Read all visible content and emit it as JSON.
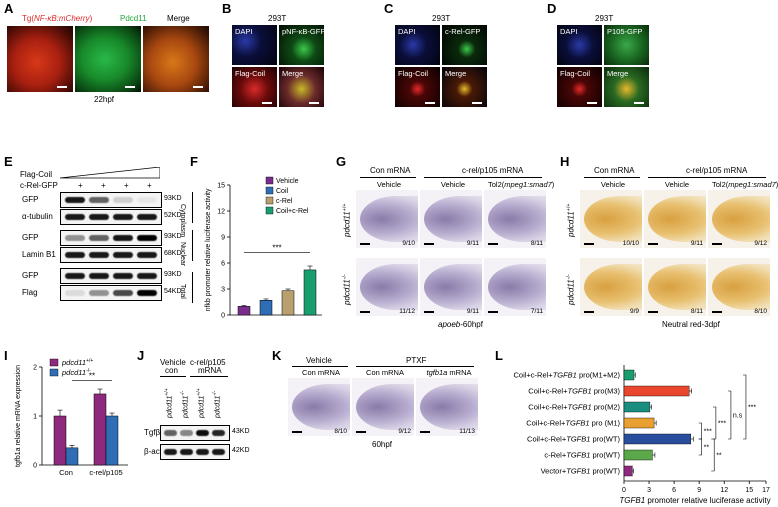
{
  "panels": {
    "A": {
      "letter": "A",
      "labels": [
        "Tg(NF-κB:mCherry)",
        "Pdcd11",
        "Merge"
      ],
      "timepoint": "22hpf"
    },
    "B": {
      "letter": "B",
      "cell": "293T",
      "labels": [
        "DAPI",
        "pNF-κB-GFP",
        "Flag-Coil",
        "Merge"
      ]
    },
    "C": {
      "letter": "C",
      "cell": "293T",
      "labels": [
        "DAPI",
        "c-Rel-GFP",
        "Flag-Coil",
        "Merge"
      ]
    },
    "D": {
      "letter": "D",
      "cell": "293T",
      "labels": [
        "DAPI",
        "P105-GFP",
        "Flag-Coil",
        "Merge"
      ]
    },
    "E": {
      "letter": "E",
      "row_flag": "Flag-Coil",
      "row_crel": "c-Rel-GFP",
      "plus": [
        "+",
        "+",
        "+",
        "+"
      ],
      "blots": [
        {
          "name": "GFP",
          "size": "93KD"
        },
        {
          "name": "α-tubulin",
          "size": "52KD"
        },
        {
          "name": "GFP",
          "size": "93KD"
        },
        {
          "name": "Lamin B1",
          "size": "68KD"
        },
        {
          "name": "GFP",
          "size": "93KD"
        },
        {
          "name": "Flag",
          "size": "54KD"
        }
      ],
      "fractions": [
        "Cytoplasm",
        "Nuclear",
        "Total"
      ]
    },
    "F": {
      "letter": "F"
    },
    "G": {
      "letter": "G",
      "group_con": "Con mRNA",
      "group_crel": "c-rel/p105 mRNA",
      "cols": [
        "Vehicle",
        "Vehicle",
        "Tol2(mpeg1:smad7)"
      ],
      "rows": [
        "pdcd11 +/+",
        "pdcd11 -/-"
      ],
      "counts": [
        "9/10",
        "9/11",
        "8/11",
        "11/12",
        "9/11",
        "7/11"
      ],
      "caption": "apoeb-60hpf"
    },
    "H": {
      "letter": "H",
      "group_con": "Con mRNA",
      "group_crel": "c-rel/p105 mRNA",
      "cols": [
        "Vehicle",
        "Vehicle",
        "Tol2(mpeg1:smad7)"
      ],
      "rows": [
        "pdcd11 +/+",
        "pdcd11 -/-"
      ],
      "counts": [
        "10/10",
        "9/11",
        "9/12",
        "9/9",
        "8/11",
        "8/10"
      ],
      "caption": "Neutral red-3dpf"
    },
    "I": {
      "letter": "I"
    },
    "J": {
      "letter": "J",
      "group1": "Vehicle",
      "group1b": "con",
      "group2": "c-rel/p105",
      "group2b": "mRNA",
      "lanes": [
        "pdcd11 +/+",
        "pdcd11 -/-",
        "pdcd11 +/+",
        "pdcd11 -/-"
      ],
      "blots": [
        {
          "name": "Tgfβ1",
          "size": "43KD"
        },
        {
          "name": "β-actin",
          "size": "42KD"
        }
      ]
    },
    "K": {
      "letter": "K",
      "group_vehicle": "Vehicle",
      "group_ptxf": "PTXF",
      "cols": [
        "Con mRNA",
        "Con mRNA",
        "tgfb1a mRNA"
      ],
      "counts": [
        "8/10",
        "9/12",
        "11/13"
      ],
      "caption": "60hpf"
    },
    "L": {
      "letter": "L"
    }
  },
  "chart_data": [
    {
      "panel": "F",
      "type": "bar",
      "ylabel": "nfkb promoter relative luciferase activity",
      "categories": [
        "Vehicle",
        "Coil",
        "c-Rel",
        "Coil+c-Rel"
      ],
      "values": [
        1.0,
        1.7,
        2.8,
        5.2
      ],
      "errors": [
        0.1,
        0.15,
        0.2,
        0.45
      ],
      "colors": [
        "#7b2d8e",
        "#2f6db5",
        "#b8a06e",
        "#1a9e6e"
      ],
      "ylim": [
        0,
        15
      ],
      "yticks": [
        "0",
        "3",
        "6",
        "9",
        "12",
        "15"
      ],
      "legend": [
        "Vehicle",
        "Coil",
        "c-Rel",
        "Coil+c-Rel"
      ],
      "legend_position": "top-right",
      "significance": "***"
    },
    {
      "panel": "I",
      "type": "bar",
      "ylabel": "tgfb1a relative mRNA expression",
      "categories": [
        "Con",
        "c-rel/p105"
      ],
      "series": [
        {
          "name": "pdcd11 +/+",
          "values": [
            1.0,
            1.45
          ],
          "errors": [
            0.12,
            0.1
          ],
          "color": "#8e2a7e"
        },
        {
          "name": "pdcd11 -/-",
          "values": [
            0.35,
            1.0
          ],
          "errors": [
            0.05,
            0.06
          ],
          "color": "#2f6db5"
        }
      ],
      "ylim": [
        0,
        2.0
      ],
      "yticks": [
        "0",
        "1",
        "2"
      ],
      "legend_position": "top-left",
      "significance": "**"
    },
    {
      "panel": "L",
      "type": "bar",
      "orientation": "horizontal",
      "xlabel": "TGFB1 promoter relative luciferase activity",
      "categories": [
        "Coil+c-Rel+TGFB1 pro(M1+M2)",
        "Coil+c-Rel+TGFB1 pro(M3)",
        "Coil+c-Rel+TGFB1 pro(M2)",
        "Coil+c-Rel+TGFB1 pro (M1)",
        "Coil+c-Rel+TGFB1 pro(WT)",
        "c-Rel+TGFB1 pro(WT)",
        "Vector+TGFB1 pro(WT)"
      ],
      "values": [
        1.2,
        7.8,
        3.1,
        3.6,
        8.0,
        3.4,
        1.0
      ],
      "errors": [
        0.15,
        0.3,
        0.2,
        0.25,
        0.3,
        0.3,
        0.15
      ],
      "colors": [
        "#1a9e6e",
        "#e8472e",
        "#1a8e7e",
        "#e8a030",
        "#2a4e9e",
        "#5aa84a",
        "#8e2a7e"
      ],
      "xlim": [
        0,
        17
      ],
      "xticks": [
        "0",
        "3",
        "6",
        "9",
        "12",
        "15",
        "17"
      ],
      "significance": [
        "***",
        "n.s",
        "***",
        "***",
        "**",
        "**"
      ]
    }
  ]
}
